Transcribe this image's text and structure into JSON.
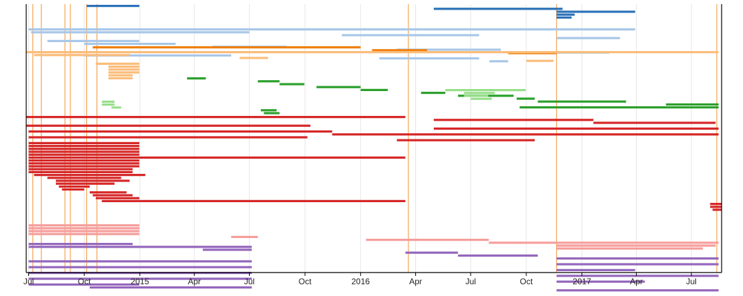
{
  "chart_data": {
    "type": "timeline",
    "x_axis": {
      "range": [
        "2014-06-27",
        "2017-08-20"
      ],
      "ticks": [
        {
          "date": "2014-07-01",
          "label": "Jul"
        },
        {
          "date": "2014-10-01",
          "label": "Oct"
        },
        {
          "date": "2015-01-01",
          "label": "2015"
        },
        {
          "date": "2015-04-01",
          "label": "Apr"
        },
        {
          "date": "2015-07-01",
          "label": "Jul"
        },
        {
          "date": "2015-10-01",
          "label": "Oct"
        },
        {
          "date": "2016-01-01",
          "label": "2016"
        },
        {
          "date": "2016-04-01",
          "label": "Apr"
        },
        {
          "date": "2016-07-01",
          "label": "Jul"
        },
        {
          "date": "2016-10-01",
          "label": "Oct"
        },
        {
          "date": "2017-01-01",
          "label": "2017"
        },
        {
          "date": "2017-04-01",
          "label": "Apr"
        },
        {
          "date": "2017-07-01",
          "label": "Jul"
        }
      ]
    },
    "grid": true,
    "colors": {
      "blue": "#2b72b8",
      "light_blue": "#a9c7e8",
      "orange": "#f07f0e",
      "light_orange": "#fbbd7b",
      "green": "#2ca02c",
      "light_green": "#98df8a",
      "red": "#d62728",
      "light_red": "#f59e9c",
      "purple": "#9467bd",
      "grid": "#e6e6e6",
      "axis": "#000000"
    },
    "tasks": [
      {
        "group": "blue",
        "start": "2014-10-05",
        "end": "2014-12-31"
      },
      {
        "group": "blue",
        "start": "2016-05-01",
        "end": "2016-11-30"
      },
      {
        "group": "blue",
        "start": "2016-11-20",
        "end": "2017-03-30"
      },
      {
        "group": "blue",
        "start": "2016-11-20",
        "end": "2016-12-20"
      },
      {
        "group": "blue",
        "start": "2016-11-20",
        "end": "2016-12-15"
      },
      {
        "group": "light_blue",
        "start": "2014-07-01",
        "end": "2017-03-30"
      },
      {
        "group": "light_blue",
        "start": "2014-07-05",
        "end": "2015-07-01"
      },
      {
        "group": "light_blue",
        "start": "2015-12-01",
        "end": "2016-07-15"
      },
      {
        "group": "light_blue",
        "start": "2016-11-20",
        "end": "2017-03-05"
      },
      {
        "group": "light_blue",
        "start": "2014-08-01",
        "end": "2014-12-31"
      },
      {
        "group": "light_blue",
        "start": "2014-10-01",
        "end": "2015-03-01"
      },
      {
        "group": "light_blue",
        "start": "2015-05-01",
        "end": "2015-09-01"
      },
      {
        "group": "light_blue",
        "start": "2016-03-01",
        "end": "2016-08-20"
      },
      {
        "group": "light_blue",
        "start": "2016-11-20",
        "end": "2017-02-15"
      },
      {
        "group": "light_blue",
        "start": "2014-10-01",
        "end": "2015-06-01"
      },
      {
        "group": "light_blue",
        "start": "2016-02-01",
        "end": "2016-07-15"
      },
      {
        "group": "light_blue",
        "start": "2016-08-01",
        "end": "2016-09-01"
      },
      {
        "group": "orange",
        "start": "2014-10-15",
        "end": "2016-01-01"
      },
      {
        "group": "orange",
        "start": "2016-01-20",
        "end": "2016-04-20"
      },
      {
        "group": "orange",
        "start": "2016-09-01",
        "end": "2016-11-20"
      },
      {
        "group": "light_orange",
        "start": "2014-06-27",
        "end": "2017-08-15"
      },
      {
        "group": "light_orange",
        "start": "2014-07-10",
        "end": "2014-12-15"
      },
      {
        "group": "light_orange",
        "start": "2015-06-15",
        "end": "2015-08-01"
      },
      {
        "group": "light_orange",
        "start": "2016-10-01",
        "end": "2016-11-15"
      },
      {
        "group": "light_orange",
        "start": "2014-10-20",
        "end": "2014-12-31"
      },
      {
        "group": "light_orange",
        "start": "2014-11-10",
        "end": "2014-12-31"
      },
      {
        "group": "light_orange",
        "start": "2014-11-10",
        "end": "2014-12-31"
      },
      {
        "group": "light_orange",
        "start": "2014-11-10",
        "end": "2014-12-31"
      },
      {
        "group": "light_orange",
        "start": "2014-11-10",
        "end": "2014-12-20"
      },
      {
        "group": "light_orange",
        "start": "2014-11-10",
        "end": "2014-12-20"
      },
      {
        "group": "green",
        "start": "2015-03-20",
        "end": "2015-04-20"
      },
      {
        "group": "green",
        "start": "2015-07-15",
        "end": "2015-08-20"
      },
      {
        "group": "green",
        "start": "2015-08-20",
        "end": "2015-09-30"
      },
      {
        "group": "green",
        "start": "2015-10-20",
        "end": "2016-01-01"
      },
      {
        "group": "green",
        "start": "2016-01-01",
        "end": "2016-02-15"
      },
      {
        "group": "green",
        "start": "2016-04-10",
        "end": "2016-05-20"
      },
      {
        "group": "green",
        "start": "2016-06-10",
        "end": "2016-09-10"
      },
      {
        "group": "green",
        "start": "2016-09-15",
        "end": "2016-10-15"
      },
      {
        "group": "green",
        "start": "2016-10-20",
        "end": "2017-03-15"
      },
      {
        "group": "green",
        "start": "2017-05-20",
        "end": "2017-08-15"
      },
      {
        "group": "green",
        "start": "2016-09-20",
        "end": "2017-08-15"
      },
      {
        "group": "green",
        "start": "2015-07-20",
        "end": "2015-08-15"
      },
      {
        "group": "green",
        "start": "2015-07-25",
        "end": "2015-08-20"
      },
      {
        "group": "light_green",
        "start": "2016-05-20",
        "end": "2016-09-30"
      },
      {
        "group": "light_green",
        "start": "2016-06-20",
        "end": "2016-08-10"
      },
      {
        "group": "light_green",
        "start": "2016-06-20",
        "end": "2016-07-30"
      },
      {
        "group": "light_green",
        "start": "2016-07-01",
        "end": "2016-08-05"
      },
      {
        "group": "light_green",
        "start": "2014-10-30",
        "end": "2014-11-20"
      },
      {
        "group": "light_green",
        "start": "2014-10-30",
        "end": "2014-11-20"
      },
      {
        "group": "light_green",
        "start": "2014-11-15",
        "end": "2014-12-01"
      },
      {
        "group": "red",
        "start": "2014-06-27",
        "end": "2016-03-15"
      },
      {
        "group": "red",
        "start": "2016-05-01",
        "end": "2017-01-20"
      },
      {
        "group": "red",
        "start": "2017-01-20",
        "end": "2017-08-10"
      },
      {
        "group": "red",
        "start": "2014-06-27",
        "end": "2015-10-10"
      },
      {
        "group": "red",
        "start": "2016-05-01",
        "end": "2017-08-15"
      },
      {
        "group": "red",
        "start": "2014-07-01",
        "end": "2015-11-15"
      },
      {
        "group": "red",
        "start": "2015-11-15",
        "end": "2017-08-15"
      },
      {
        "group": "red",
        "start": "2014-07-01",
        "end": "2015-10-05"
      },
      {
        "group": "red",
        "start": "2016-03-01",
        "end": "2016-10-15"
      },
      {
        "group": "red",
        "start": "2014-07-01",
        "end": "2014-12-31"
      },
      {
        "group": "red",
        "start": "2014-07-01",
        "end": "2014-12-31"
      },
      {
        "group": "red",
        "start": "2014-07-01",
        "end": "2014-12-31"
      },
      {
        "group": "red",
        "start": "2014-07-01",
        "end": "2014-12-31"
      },
      {
        "group": "red",
        "start": "2014-07-01",
        "end": "2014-12-31"
      },
      {
        "group": "red",
        "start": "2014-07-01",
        "end": "2016-03-15"
      },
      {
        "group": "red",
        "start": "2014-07-01",
        "end": "2014-12-31"
      },
      {
        "group": "red",
        "start": "2014-07-01",
        "end": "2014-12-31"
      },
      {
        "group": "red",
        "start": "2014-07-01",
        "end": "2014-12-31"
      },
      {
        "group": "red",
        "start": "2014-07-01",
        "end": "2014-12-20"
      },
      {
        "group": "red",
        "start": "2014-07-01",
        "end": "2014-12-20"
      },
      {
        "group": "red",
        "start": "2014-07-10",
        "end": "2015-01-10"
      },
      {
        "group": "red",
        "start": "2014-08-01",
        "end": "2014-12-01"
      },
      {
        "group": "red",
        "start": "2014-08-15",
        "end": "2014-12-15"
      },
      {
        "group": "red",
        "start": "2014-08-15",
        "end": "2014-11-20"
      },
      {
        "group": "red",
        "start": "2014-08-20",
        "end": "2014-10-10"
      },
      {
        "group": "red",
        "start": "2014-08-25",
        "end": "2014-10-01"
      },
      {
        "group": "red",
        "start": "2014-10-10",
        "end": "2014-12-10"
      },
      {
        "group": "red",
        "start": "2014-10-15",
        "end": "2014-12-20"
      },
      {
        "group": "red",
        "start": "2014-10-20",
        "end": "2014-12-31"
      },
      {
        "group": "red",
        "start": "2014-10-30",
        "end": "2016-03-15"
      },
      {
        "group": "red",
        "start": "2017-08-01",
        "end": "2017-08-20"
      },
      {
        "group": "red",
        "start": "2017-08-01",
        "end": "2017-08-20"
      },
      {
        "group": "red",
        "start": "2017-08-05",
        "end": "2017-08-20"
      },
      {
        "group": "light_red",
        "start": "2014-07-01",
        "end": "2014-12-31"
      },
      {
        "group": "light_red",
        "start": "2014-07-01",
        "end": "2014-12-31"
      },
      {
        "group": "light_red",
        "start": "2014-07-01",
        "end": "2014-12-31"
      },
      {
        "group": "light_red",
        "start": "2014-07-01",
        "end": "2014-12-31"
      },
      {
        "group": "light_red",
        "start": "2015-06-01",
        "end": "2015-07-15"
      },
      {
        "group": "light_red",
        "start": "2016-01-10",
        "end": "2016-07-31"
      },
      {
        "group": "light_red",
        "start": "2016-07-31",
        "end": "2017-08-15"
      },
      {
        "group": "light_red",
        "start": "2016-11-20",
        "end": "2017-08-10"
      },
      {
        "group": "light_red",
        "start": "2016-11-20",
        "end": "2017-07-20"
      },
      {
        "group": "purple",
        "start": "2014-07-01",
        "end": "2014-12-20"
      },
      {
        "group": "purple",
        "start": "2014-07-01",
        "end": "2015-07-05"
      },
      {
        "group": "purple",
        "start": "2015-04-15",
        "end": "2015-07-05"
      },
      {
        "group": "purple",
        "start": "2016-03-15",
        "end": "2016-06-10"
      },
      {
        "group": "purple",
        "start": "2016-06-10",
        "end": "2016-10-20"
      },
      {
        "group": "purple",
        "start": "2016-11-20",
        "end": "2017-08-15"
      },
      {
        "group": "purple",
        "start": "2014-07-01",
        "end": "2015-07-05"
      },
      {
        "group": "purple",
        "start": "2016-11-20",
        "end": "2017-08-15"
      },
      {
        "group": "purple",
        "start": "2014-07-01",
        "end": "2015-07-05"
      },
      {
        "group": "purple",
        "start": "2016-11-20",
        "end": "2017-03-30"
      },
      {
        "group": "purple",
        "start": "2014-07-01",
        "end": "2015-07-05"
      },
      {
        "group": "purple",
        "start": "2016-11-20",
        "end": "2017-08-15"
      },
      {
        "group": "purple",
        "start": "2014-07-01",
        "end": "2015-07-05"
      },
      {
        "group": "purple",
        "start": "2016-11-20",
        "end": "2017-04-15"
      },
      {
        "group": "purple",
        "start": "2014-07-01",
        "end": "2014-12-31"
      },
      {
        "group": "purple",
        "start": "2014-10-10",
        "end": "2015-07-05"
      },
      {
        "group": "purple",
        "start": "2016-11-20",
        "end": "2017-08-15"
      }
    ],
    "markers": [
      {
        "group": "orange",
        "date": "2014-07-08"
      },
      {
        "group": "orange",
        "date": "2014-07-22"
      },
      {
        "group": "orange",
        "date": "2014-08-30"
      },
      {
        "group": "orange",
        "date": "2014-09-08"
      },
      {
        "group": "orange",
        "date": "2014-10-05"
      },
      {
        "group": "orange",
        "date": "2014-10-22"
      },
      {
        "group": "orange",
        "date": "2016-03-20"
      },
      {
        "group": "orange",
        "date": "2016-11-20"
      },
      {
        "group": "orange",
        "date": "2017-08-12"
      }
    ]
  }
}
